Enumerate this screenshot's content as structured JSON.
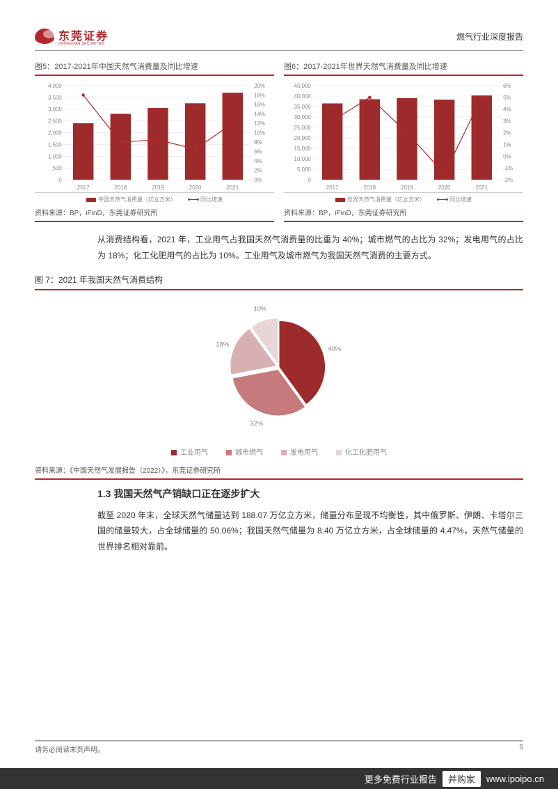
{
  "header": {
    "logo_cn": "东莞证券",
    "logo_en": "DONGGUAN SECURITIES",
    "report_type": "燃气行业深度报告"
  },
  "chart5": {
    "title": "图5：2017-2021年中国天然气消费量及同比增速",
    "type": "bar-line",
    "x": [
      "2017",
      "2018",
      "2019",
      "2020",
      "2021"
    ],
    "bars": [
      2400,
      2800,
      3050,
      3250,
      3700
    ],
    "growth_pct": [
      18,
      8,
      8.5,
      6.5,
      12
    ],
    "ylim_left": [
      0,
      4000
    ],
    "ytick_left": [
      0,
      500,
      1000,
      1500,
      2000,
      2500,
      3000,
      3500,
      4000
    ],
    "ylim_right": [
      0,
      20
    ],
    "ytick_right": [
      0,
      2,
      4,
      6,
      8,
      10,
      12,
      14,
      16,
      18,
      20
    ],
    "y_labels": [
      "0",
      "500",
      "1,000",
      "1,500",
      "2,000",
      "2,500",
      "3,000",
      "3,500",
      "4,000"
    ],
    "y2_labels": [
      "0%",
      "2%",
      "4%",
      "6%",
      "8%",
      "10%",
      "12%",
      "14%",
      "16%",
      "18%",
      "20%"
    ],
    "bar_color": "#9d2b2b",
    "line_color": "#b3272d",
    "legend_bar": "中国天然气消费量（亿立方米）",
    "legend_line": "同比增速",
    "source": "资料来源：BP，iFinD，东莞证券研究所"
  },
  "chart6": {
    "title": "图6：2017-2021年世界天然气消费量及同比增速",
    "type": "bar-line",
    "x": [
      "2017",
      "2018",
      "2019",
      "2020",
      "2021"
    ],
    "bars": [
      36500,
      38500,
      39000,
      38300,
      40300
    ],
    "growth_pct": [
      3,
      5,
      2,
      -1.5,
      5
    ],
    "ylim_left": [
      0,
      45000
    ],
    "ytick_left": [
      0,
      5000,
      10000,
      15000,
      20000,
      25000,
      30000,
      35000,
      40000,
      45000
    ],
    "ylim_right": [
      -2,
      6
    ],
    "ytick_right": [
      -2,
      -1,
      0,
      1,
      2,
      3,
      4,
      5,
      6
    ],
    "y_labels": [
      "0",
      "5,000",
      "10,000",
      "15,000",
      "20,000",
      "25,000",
      "30,000",
      "35,000",
      "40,000",
      "45,000"
    ],
    "y2_labels": [
      "-2%",
      "-1%",
      "0%",
      "1%",
      "2%",
      "3%",
      "4%",
      "5%",
      "6%"
    ],
    "bar_color": "#9d2b2b",
    "line_color": "#b3272d",
    "legend_bar": "世界天然气消费量（亿立方米）",
    "legend_line": "同比增速",
    "source": "资料来源：BP，iFinD，东莞证券研究所"
  },
  "paragraph1": "从消费结构看，2021 年，工业用气占我国天然气消费量的比重为 40%；城市燃气的占比为 32%；发电用气的占比为 18%；化工化肥用气的占比为 10%。工业用气及城市燃气为我国天然气消费的主要方式。",
  "chart7": {
    "title": "图 7：2021 年我国天然气消费结构",
    "type": "pie",
    "slices": [
      {
        "label": "工业用气",
        "value": 40,
        "color": "#9d2b2b",
        "text": "40%"
      },
      {
        "label": "城市燃气",
        "value": 32,
        "color": "#c77a7e",
        "text": "32%"
      },
      {
        "label": "发电用气",
        "value": 18,
        "color": "#d9b0b2",
        "text": "18%"
      },
      {
        "label": "化工化肥用气",
        "value": 10,
        "color": "#e8d5d6",
        "text": "10%"
      }
    ],
    "source": "资料来源：《中国天然气发展报告（2022）》，东莞证券研究所"
  },
  "section_1_3": {
    "heading": "1.3 我国天然气产销缺口正在逐步扩大",
    "body": "截至 2020 年末，全球天然气储量达到 188.07 万亿立方米，储量分布呈现不均衡性，其中俄罗斯、伊朗、卡塔尔三国的储量较大，占全球储量的 50.06%；我国天然气储量为 8.40 万亿立方米，占全球储量的 4.47%，天然气储量的世界排名相对靠前。"
  },
  "footer": {
    "disclaimer": "请务必阅读末页声明。",
    "page_num": "5"
  },
  "banner": {
    "text_left": "更多免费行业报告",
    "box": "并购家",
    "url": "www.ipoipo.cn"
  },
  "colors": {
    "accent": "#b3272d",
    "bar": "#9d2b2b",
    "grid": "#dddddd",
    "text_light": "#888888"
  }
}
